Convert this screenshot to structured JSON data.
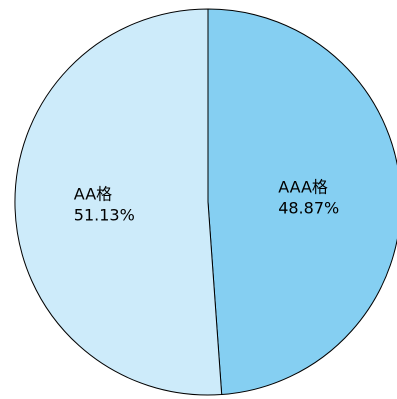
{
  "chart_data": {
    "type": "pie",
    "title": "",
    "slices": [
      {
        "label": "AAA格",
        "value": 48.87,
        "percent_label": "48.87%",
        "color": "#85CFF2"
      },
      {
        "label": "AA格",
        "value": 51.13,
        "percent_label": "51.13%",
        "color": "#CDEBFA"
      }
    ],
    "start_angle_deg": 0,
    "direction": "clockwise",
    "labels_inside": true,
    "legend": "none"
  }
}
